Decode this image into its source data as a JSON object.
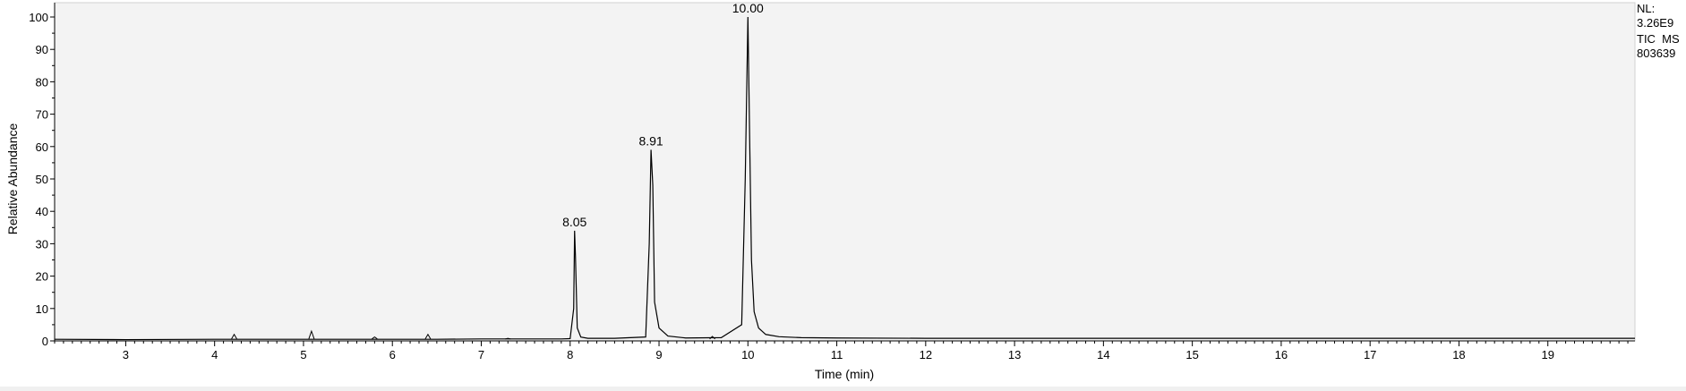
{
  "chart_data": {
    "type": "line",
    "title": "",
    "xlabel": "Time (min)",
    "ylabel": "Relative Abundance",
    "xlim": [
      2.2,
      19.98
    ],
    "ylim": [
      0,
      100
    ],
    "x_ticks": [
      3,
      4,
      5,
      6,
      7,
      8,
      9,
      10,
      11,
      12,
      13,
      14,
      15,
      16,
      17,
      18,
      19
    ],
    "y_ticks": [
      0,
      10,
      20,
      30,
      40,
      50,
      60,
      70,
      80,
      90,
      100
    ],
    "grid": false,
    "legend": "none",
    "colors": {
      "line": "#000000",
      "plot_background": "#f3f3f3",
      "axis": "#000000"
    },
    "info_lines": [
      "NL:",
      "3.26E9",
      "TIC  MS",
      "803639"
    ],
    "peaks": [
      {
        "x": 8.05,
        "y": 34,
        "label": "8.05"
      },
      {
        "x": 8.91,
        "y": 59,
        "label": "8.91"
      },
      {
        "x": 10.0,
        "y": 100,
        "label": "10.00"
      }
    ],
    "minor_peaks": [
      {
        "x": 4.22,
        "y": 2
      },
      {
        "x": 5.09,
        "y": 3
      },
      {
        "x": 5.8,
        "y": 1.2
      },
      {
        "x": 6.4,
        "y": 2
      },
      {
        "x": 7.3,
        "y": 0.8
      },
      {
        "x": 9.6,
        "y": 1.4
      }
    ],
    "series": [
      {
        "x": [
          2.2,
          3.0,
          4.0,
          4.5,
          5.0,
          5.5,
          6.0,
          6.5,
          7.0,
          7.5,
          7.9,
          8.0,
          8.04,
          8.05,
          8.06,
          8.08,
          8.12,
          8.2,
          8.5,
          8.85,
          8.89,
          8.91,
          8.93,
          8.95,
          9.0,
          9.1,
          9.3,
          9.7,
          9.93,
          9.97,
          10.0,
          10.02,
          10.04,
          10.07,
          10.12,
          10.2,
          10.35,
          10.6,
          11.0,
          12.0,
          14.0,
          16.0,
          18.0,
          19.98
        ],
        "y": [
          0.5,
          0.4,
          0.5,
          0.5,
          0.5,
          0.5,
          0.5,
          0.5,
          0.6,
          0.6,
          0.6,
          0.7,
          10,
          34,
          26,
          4,
          1.2,
          0.8,
          0.8,
          1.2,
          30,
          59,
          48,
          12,
          4,
          1.5,
          0.9,
          1.0,
          5,
          50,
          100,
          62,
          25,
          9,
          4,
          2,
          1.3,
          1.0,
          0.9,
          0.8,
          0.8,
          0.8,
          0.8,
          0.8
        ]
      }
    ]
  }
}
